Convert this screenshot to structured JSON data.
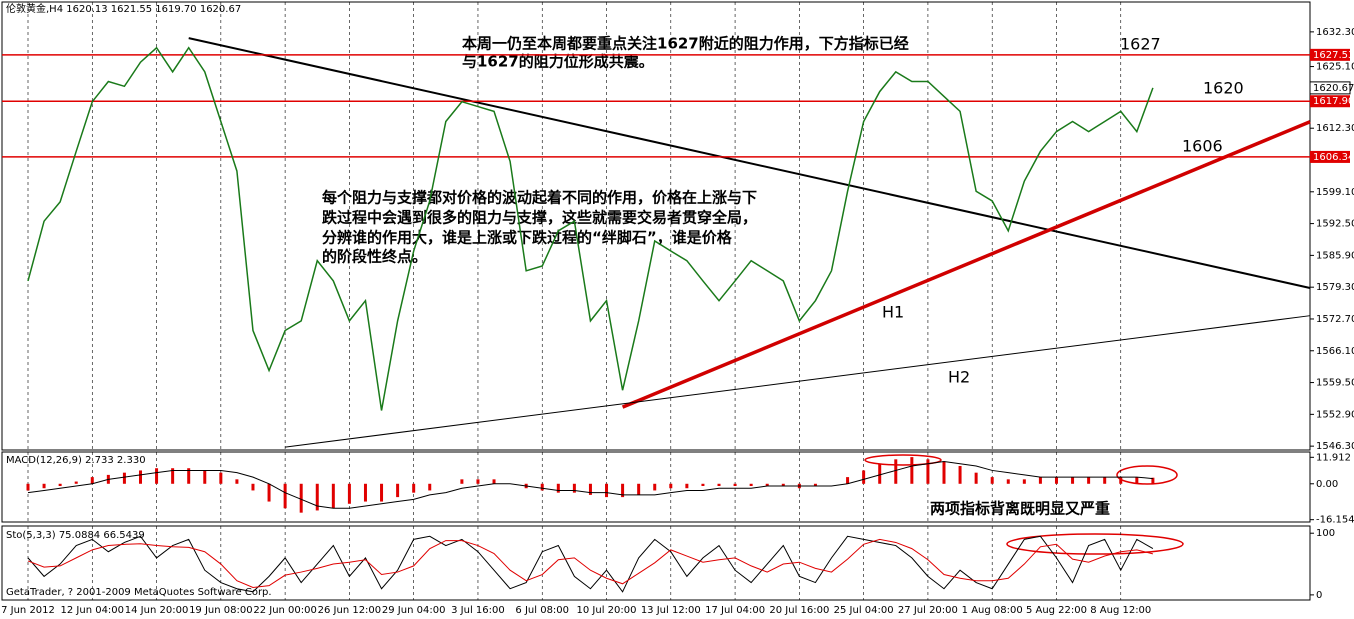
{
  "chart_data": [
    {
      "type": "line",
      "title": "伦敦黄金,H4  1620.13 1621.55 1619.70 1620.67",
      "categories": [
        "7 Jun 2012",
        null,
        null,
        null,
        "12 Jun 04:00",
        null,
        null,
        null,
        "14 Jun 20:00",
        null,
        null,
        null,
        "19 Jun 08:00",
        null,
        null,
        null,
        "22 Jun 00:00",
        null,
        null,
        null,
        "26 Jun 12:00",
        null,
        null,
        null,
        "29 Jun 04:00",
        null,
        null,
        null,
        "3 Jul 16:00",
        null,
        null,
        null,
        "6 Jul 08:00",
        null,
        null,
        null,
        "10 Jul 20:00",
        null,
        null,
        null,
        "13 Jul 12:00",
        null,
        null,
        null,
        "17 Jul 04:00",
        null,
        null,
        null,
        "20 Jul 16:00",
        null,
        null,
        null,
        "25 Jul 04:00",
        null,
        null,
        null,
        "27 Jul 20:00",
        null,
        null,
        null,
        "1 Aug 08:00",
        null,
        null,
        null,
        "5 Aug 22:00",
        null,
        null,
        null,
        "8 Aug 12:00",
        null,
        null
      ],
      "series": [
        {
          "color": "#1a7a1a",
          "values": [
            1580.6,
            1593,
            1597,
            1607.5,
            1617.8,
            1622,
            1621,
            1626,
            1629,
            1624,
            1629,
            1624,
            1613.7,
            1603.4,
            1570.3,
            1562,
            1570.3,
            1572.3,
            1584.8,
            1580.6,
            1572.3,
            1576.5,
            1553.7,
            1572.3,
            1586.8,
            1597.2,
            1613.7,
            1617.8,
            1616.8,
            1615.8,
            1605.4,
            1582.7,
            1583.7,
            1591,
            1593,
            1572.3,
            1576.5,
            1557.9,
            1572.3,
            1588.9,
            1586.8,
            1584.8,
            1580.6,
            1576.5,
            1580.6,
            1584.8,
            1582.7,
            1580.6,
            1572.3,
            1576.5,
            1582.7,
            1599.2,
            1613.7,
            1619.9,
            1624,
            1622,
            1622,
            1618.9,
            1615.8,
            1599.2,
            1597.2,
            1591,
            1601.3,
            1607.5,
            1611.6,
            1613.7,
            1611.6,
            1613.7,
            1615.8,
            1611.6,
            1620.67
          ]
        }
      ],
      "ylim": [
        1545.5,
        1638.5
      ],
      "yticks": [
        {
          "value": 1546.3,
          "label": "1546.30"
        },
        {
          "value": 1552.9,
          "label": "1552.90"
        },
        {
          "value": 1559.5,
          "label": "1559.50"
        },
        {
          "value": 1566.1,
          "label": "1566.10"
        },
        {
          "value": 1572.7,
          "label": "1572.70"
        },
        {
          "value": 1579.3,
          "label": "1579.30"
        },
        {
          "value": 1585.9,
          "label": "1585.90"
        },
        {
          "value": 1592.5,
          "label": "1592.50"
        },
        {
          "value": 1599.1,
          "label": "1599.10"
        },
        {
          "value": 1612.3,
          "label": "1612.30"
        },
        {
          "value": 1625.1,
          "label": "1625.10"
        },
        {
          "value": 1632.3,
          "label": "1632.30"
        }
      ],
      "levels": [
        1627.53,
        {
          "value": 1617.9,
          "label": "1617.90"
        },
        1606.34
      ],
      "level_color": "#e00000",
      "last": 1620.67,
      "trendlines": [
        {
          "from_index": 10,
          "from": 1631,
          "to_index": 70,
          "to": 1586.4,
          "color": "#000",
          "width": 2
        },
        {
          "from_index": 37,
          "from": 1554.4,
          "to_index": 70,
          "to": 1600.1,
          "color": "#d00000",
          "width": 3.5
        },
        {
          "from_index": 16,
          "from": 1546.1,
          "to_index": 70,
          "to": 1569.2,
          "color": "#000",
          "width": 1
        }
      ],
      "annotations": [
        "本周一仍至本周都要重点关注1627附近的阻力作用，下方指标已经",
        "与1627的阻力位形成共震。",
        "每个阻力与支撑都对价格的波动起着不同的作用，价格在上涨与下",
        "跌过程中会遇到很多的阻力与支撑，这些就需要交易者贯穿全局，",
        "分辨谁的作用大，谁是上涨或下跌过程的“绊脚石”，谁是价格",
        "的阶段性终点。",
        "1627",
        "1620",
        "1606",
        "H1",
        "H2"
      ]
    },
    {
      "type": "macd",
      "title": "MACD(12,26,9) 2.733 2.330",
      "series": [
        {
          "color": "#e00000",
          "values": [
            -3,
            -2,
            -1,
            1,
            3,
            4,
            5,
            6,
            7,
            7,
            7,
            6,
            5,
            2,
            -3,
            -8,
            -11,
            -13,
            -12,
            -11,
            -9,
            -8,
            -8,
            -6,
            -4,
            -3,
            0,
            2,
            2,
            2,
            0,
            -2,
            -3,
            -4,
            -4,
            -5,
            -6,
            -6,
            -5,
            -3,
            -2,
            -2,
            -1,
            -1,
            -1,
            -1,
            -1,
            -1,
            -2,
            -1,
            0,
            3,
            6,
            9,
            11,
            12,
            11,
            10,
            8,
            5,
            3,
            2,
            2,
            3,
            3,
            3,
            3,
            3,
            3,
            3,
            2.733
          ]
        },
        {
          "color": "#000",
          "values": [
            -4,
            -3,
            -2,
            -1,
            0,
            2,
            3,
            4,
            5,
            6,
            6,
            6,
            6,
            5,
            3,
            0,
            -4,
            -7,
            -10,
            -11,
            -11,
            -10,
            -9,
            -8,
            -7,
            -5,
            -4,
            -2,
            -1,
            0,
            0,
            -1,
            -2,
            -3,
            -3,
            -4,
            -4,
            -5,
            -5,
            -5,
            -4,
            -3,
            -3,
            -2,
            -2,
            -2,
            -1,
            -1,
            -1,
            -1,
            -1,
            0,
            2,
            4,
            6,
            8,
            9,
            10,
            9,
            8,
            6,
            5,
            4,
            3,
            3,
            3,
            3,
            3,
            3,
            3,
            2.33
          ]
        }
      ],
      "ylim": [
        -17.2,
        14.3
      ],
      "yticks": [
        11.912,
        {
          "value": 0,
          "label": "0.00"
        },
        -16.154
      ],
      "annotations": [
        "两项指标背离既明显又严重"
      ]
    },
    {
      "type": "stochastic",
      "title": "Sto(5,3,3) 75.0884 66.5439",
      "series": [
        {
          "color": "#000",
          "values": [
            60,
            30,
            50,
            80,
            90,
            70,
            85,
            95,
            60,
            80,
            90,
            40,
            20,
            10,
            5,
            30,
            60,
            20,
            50,
            80,
            30,
            60,
            10,
            40,
            90,
            95,
            80,
            90,
            70,
            40,
            10,
            20,
            70,
            80,
            30,
            10,
            40,
            5,
            60,
            90,
            70,
            30,
            60,
            80,
            40,
            20,
            50,
            80,
            30,
            20,
            60,
            95,
            90,
            85,
            80,
            60,
            30,
            10,
            40,
            20,
            10,
            50,
            90,
            95,
            60,
            20,
            80,
            90,
            40,
            90,
            75.0884
          ]
        },
        {
          "color": "#e00000",
          "values": [
            55,
            45,
            47,
            60,
            73,
            80,
            82,
            83,
            80,
            78,
            77,
            70,
            50,
            23,
            12,
            15,
            32,
            37,
            43,
            50,
            53,
            57,
            33,
            37,
            47,
            75,
            88,
            88,
            80,
            67,
            40,
            23,
            33,
            57,
            60,
            40,
            27,
            18,
            35,
            52,
            73,
            63,
            53,
            57,
            60,
            47,
            37,
            50,
            53,
            43,
            37,
            58,
            82,
            90,
            85,
            75,
            57,
            33,
            27,
            23,
            23,
            27,
            50,
            78,
            82,
            58,
            53,
            63,
            70,
            73,
            66.5439
          ]
        }
      ],
      "ylim": [
        -8.3,
        111.7
      ],
      "yticks": [
        100,
        0
      ],
      "footer": "GetaTrader, ? 2001-2009 MetaQuotes Software Corp."
    }
  ]
}
